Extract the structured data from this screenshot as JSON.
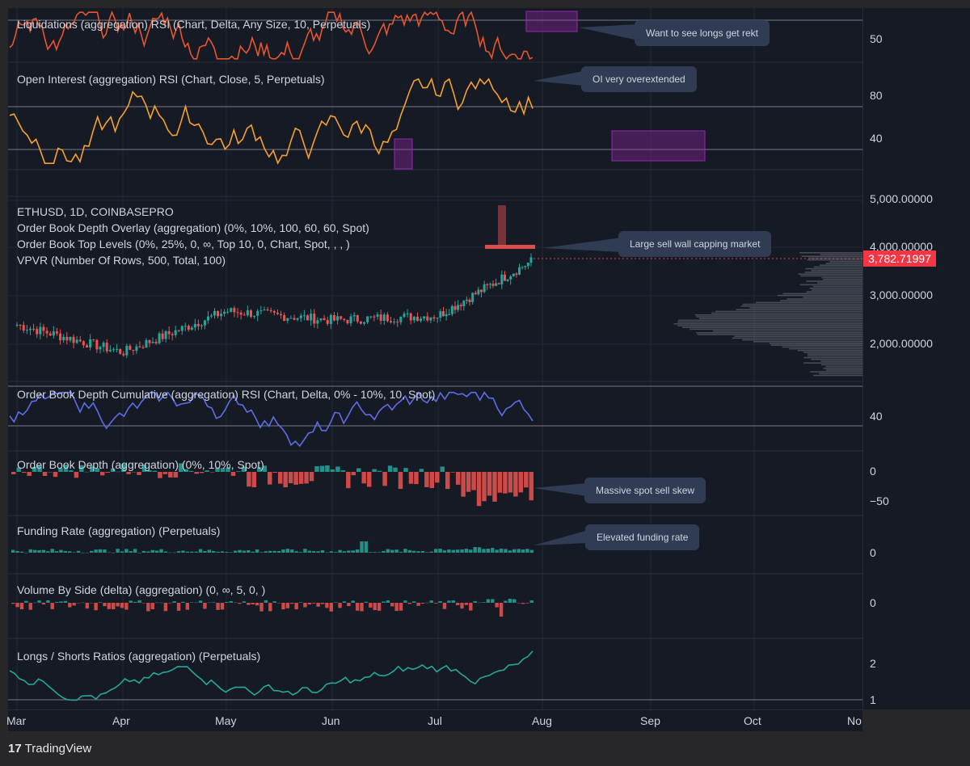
{
  "brand": {
    "name": "TradingView",
    "icon": "tradingview-logo-icon"
  },
  "panes": [
    {
      "id": "liquidations",
      "title": "Liquidations (aggregation) RSI (Chart, Delta, Any Size, 10, Perpetuals)",
      "axis_labels": [
        "50"
      ],
      "series_color": "#e8552d"
    },
    {
      "id": "open-interest",
      "title": "Open Interest (aggregation) RSI (Chart, Close, 5, Perpetuals)",
      "axis_labels": [
        "80",
        "40"
      ],
      "series_color": "#f5a030"
    },
    {
      "id": "price",
      "titles": [
        "ETHUSD, 1D, COINBASEPRO",
        "Order Book Depth Overlay (aggregation) (0%, 10%, 100, 60, 60, Spot)",
        "Order Book Top Levels (0%, 25%, 0, ∞, Top 10, 0, Chart, Spot, , , )",
        "VPVR (Number Of Rows, 500, Total, 100)"
      ],
      "axis_labels": [
        "5,000.00000",
        "4,000.00000",
        "3,000.00000",
        "2,000.00000"
      ],
      "last_price": "3,782.71997"
    },
    {
      "id": "ob-cumulative",
      "title": "Order Book Depth Cumulative (aggregation) RSI (Chart, Delta, 0% - 10%, 10, Spot)",
      "axis_labels": [
        "40"
      ],
      "series_color": "#5b6ee8"
    },
    {
      "id": "ob-depth",
      "title": "Order Book Depth (aggregation) (0%, 10%, Spot)",
      "axis_labels": [
        "0",
        "−50"
      ]
    },
    {
      "id": "funding",
      "title": "Funding Rate (aggregation) (Perpetuals)",
      "axis_labels": [
        "0"
      ]
    },
    {
      "id": "volume-side",
      "title": "Volume By Side (delta) (aggregation) (0, ∞, 5, 0, )",
      "axis_labels": [
        "0"
      ]
    },
    {
      "id": "long-short",
      "title": "Longs / Shorts Ratios (aggregation) (Perpetuals)",
      "axis_labels": [
        "2",
        "1"
      ],
      "series_color": "#26a69a"
    }
  ],
  "callouts": [
    "Want to see longs get rekt",
    "OI very overextended",
    "Large sell wall capping market",
    "Massive spot sell skew",
    "Elevated funding rate"
  ],
  "time_axis": [
    "Mar",
    "Apr",
    "May",
    "Jun",
    "Jul",
    "Aug",
    "Sep",
    "Oct",
    "No"
  ],
  "colors": {
    "up": "#26a69a",
    "down": "#ef5350",
    "background": "#161a25",
    "grid": "#232836",
    "highlight_box": "#9c27b0"
  },
  "chart_data": {
    "type": "line",
    "symbol": "ETHUSD",
    "interval": "1D",
    "exchange": "COINBASEPRO",
    "x": [
      "Mar",
      "Apr",
      "May",
      "Jun",
      "Jul",
      "Aug"
    ],
    "series": [
      {
        "name": "ETHUSD",
        "values": [
          2400,
          1800,
          2700,
          2500,
          2600,
          3782.71997
        ]
      }
    ],
    "ylim": [
      1200,
      5200
    ],
    "grid": true
  }
}
